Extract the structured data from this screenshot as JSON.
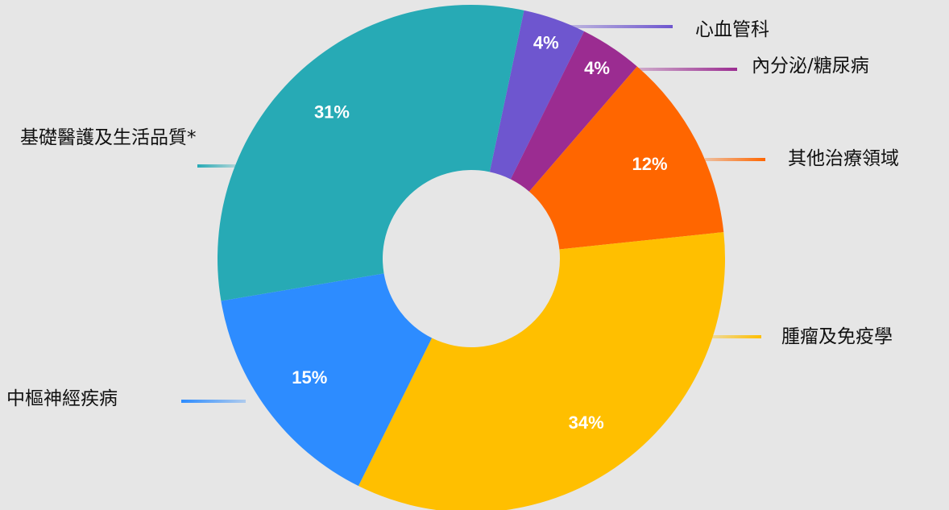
{
  "chart_data": {
    "type": "donut",
    "categories": [
      "心血管科",
      "內分泌/糖尿病",
      "其他治療領域",
      "腫瘤及免疫學",
      "中樞神經疾病",
      "基礎醫護及生活品質*"
    ],
    "values": [
      4,
      4,
      12,
      34,
      15,
      31
    ],
    "value_labels": [
      "4%",
      "4%",
      "12%",
      "34%",
      "15%",
      "31%"
    ],
    "colors": [
      "#6e56cf",
      "#9b2c91",
      "#ff6600",
      "#ffbf00",
      "#2d8cff",
      "#27aab5"
    ]
  }
}
